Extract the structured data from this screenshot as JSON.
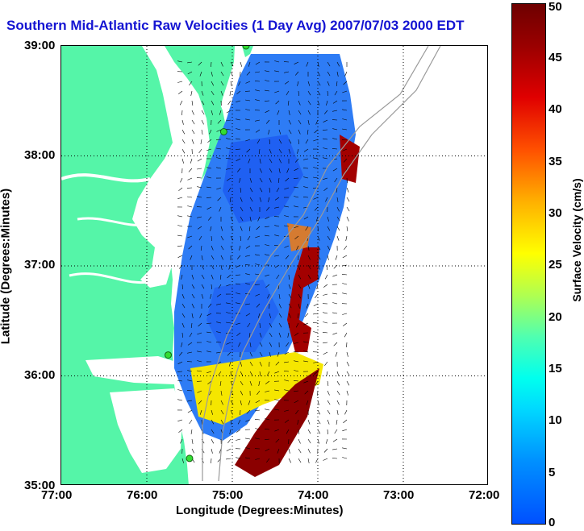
{
  "map": {
    "title": "Southern Mid-Atlantic Raw Velocities (1 Day Avg) 2007/07/03 2000 EDT",
    "xlabel": "Longitude (Degrees:Minutes)",
    "ylabel": "Latitude (Degrees:Minutes)",
    "x_ticks": [
      "77:00",
      "76:00",
      "75:00",
      "74:00",
      "73:00",
      "72:00"
    ],
    "y_ticks": [
      "39:00",
      "38:00",
      "37:00",
      "36:00",
      "35:00"
    ],
    "lon_range": [
      -77,
      -72
    ],
    "lat_range": [
      35,
      39
    ],
    "land_color": "#55f5a8",
    "grid": "dotted"
  },
  "colorbar": {
    "label": "Surface Velocity (cm/s)",
    "ticks": [
      "0",
      "5",
      "10",
      "15",
      "20",
      "25",
      "30",
      "35",
      "40",
      "45",
      "50"
    ],
    "range": [
      0,
      50
    ]
  },
  "stations": [
    {
      "lon": -74.84,
      "lat": 39.0
    },
    {
      "lon": -75.1,
      "lat": 38.22
    },
    {
      "lon": -75.75,
      "lat": 36.19
    },
    {
      "lon": -75.5,
      "lat": 35.25
    }
  ]
}
